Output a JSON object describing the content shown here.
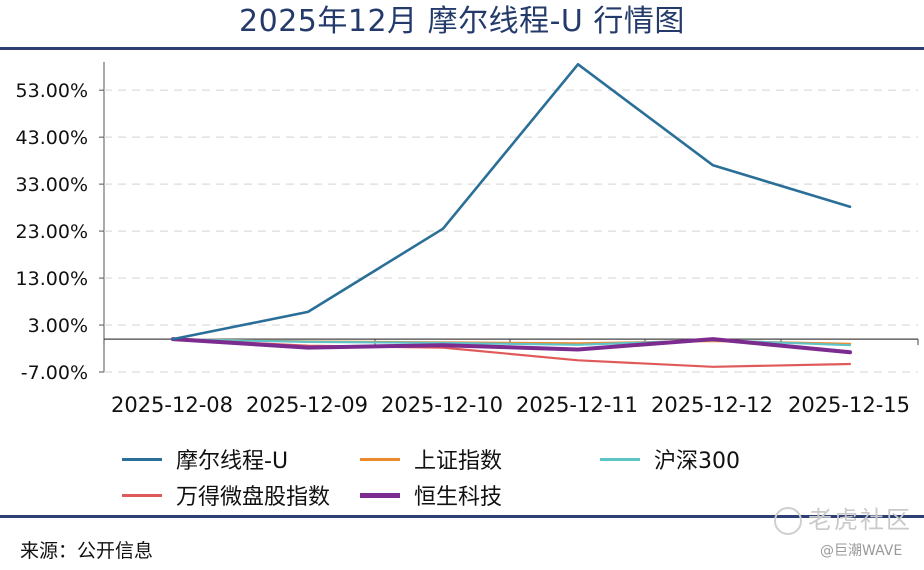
{
  "title": "2025年12月 摩尔线程-U 行情图",
  "source": "来源：公开信息",
  "watermark": {
    "brand": "老虎社区",
    "author": "@巨潮WAVE"
  },
  "chart_data": {
    "type": "line",
    "title": "2025年12月 摩尔线程-U 行情图",
    "categories": [
      "2025-12-08",
      "2025-12-09",
      "2025-12-10",
      "2025-12-11",
      "2025-12-12",
      "2025-12-15"
    ],
    "y_ticks": [
      "53.00%",
      "43.00%",
      "33.00%",
      "23.00%",
      "13.00%",
      "3.00%",
      "-7.00%"
    ],
    "ylim": [
      -7,
      59
    ],
    "series": [
      {
        "name": "摩尔线程-U",
        "color": "#2a6f97",
        "values": [
          0.0,
          5.8,
          23.5,
          58.5,
          37.0,
          28.2
        ]
      },
      {
        "name": "上证指数",
        "color": "#ee8a2e",
        "values": [
          0.0,
          -0.5,
          -0.7,
          -0.9,
          -0.4,
          -1.0
        ]
      },
      {
        "name": "沪深300",
        "color": "#5ec4c8",
        "values": [
          0.0,
          -0.6,
          -0.8,
          -1.2,
          -0.2,
          -1.3
        ]
      },
      {
        "name": "万得微盘股指数",
        "color": "#e05a5a",
        "values": [
          0.0,
          -1.4,
          -1.8,
          -4.5,
          -5.9,
          -5.3
        ]
      },
      {
        "name": "恒生科技",
        "color": "#7b2c8e",
        "values": [
          0.0,
          -1.8,
          -1.3,
          -2.2,
          0.0,
          -2.8
        ]
      }
    ],
    "legend_position": "bottom",
    "grid": "horizontal-dashed"
  }
}
